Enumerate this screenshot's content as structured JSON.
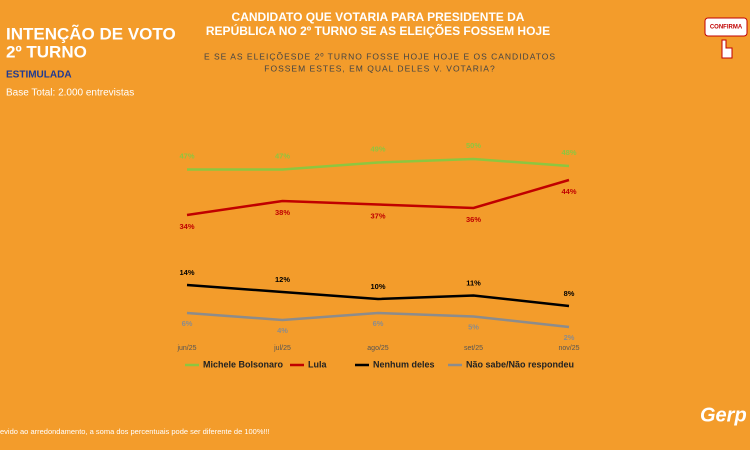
{
  "chart_data": {
    "type": "line",
    "title": [
      "INTENÇÃO DE VOTO",
      "2º TURNO"
    ],
    "subtitle": "ESTIMULADA",
    "base_note": "Base Total: 2.000 entrevistas",
    "heading": [
      "CANDIDATO QUE VOTARIA PARA PRESIDENTE DA",
      "REPÚBLICA NO 2º TURNO SE AS ELEIÇÕES FOSSEM HOJE"
    ],
    "question": [
      "E SE AS ELEIÇÕESDE 2º TURNO FOSSE HOJE HOJE E OS CANDIDATOS",
      "FOSSEM ESTES, EM QUAL DELES V. VOTARIA?"
    ],
    "button": "CONFIRMA",
    "footnote": "evido ao arredondamento, a soma dos percentuais pode ser diferente de 100%!!!",
    "logo": "Gerp",
    "categories": [
      "jun/25",
      "jul/25",
      "ago/25",
      "set/25",
      "nov/25"
    ],
    "series": [
      {
        "name": "Michele Bolsonaro",
        "color": "#8dc63f",
        "values": [
          47,
          47,
          49,
          50,
          48
        ],
        "value_labels": [
          "47%",
          "47%",
          "49%",
          "50%",
          "48%"
        ]
      },
      {
        "name": "Lula",
        "color": "#c00000",
        "values": [
          34,
          38,
          37,
          36,
          44
        ],
        "value_labels": [
          "34%",
          "38%",
          "37%",
          "36%",
          "44%"
        ]
      },
      {
        "name": "Nenhum deles",
        "color": "#000000",
        "values": [
          14,
          12,
          10,
          11,
          8
        ],
        "value_labels": [
          "14%",
          "12%",
          "10%",
          "11%",
          "8%"
        ]
      },
      {
        "name": "Não sabe/Não respondeu",
        "color": "#8c8c8c",
        "values": [
          6,
          4,
          6,
          5,
          2
        ],
        "value_labels": [
          "6%",
          "4%",
          "6%",
          "5%",
          "2%"
        ]
      }
    ]
  }
}
